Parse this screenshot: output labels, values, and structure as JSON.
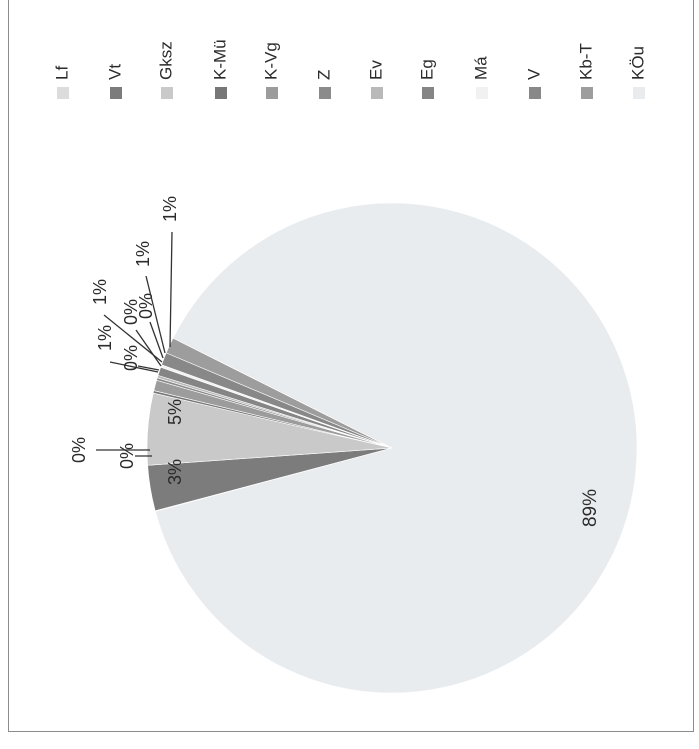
{
  "chart_data": {
    "type": "pie",
    "orientation": "rotated 90 degrees counter-clockwise (scanned page)",
    "title": "",
    "legend_position": "right",
    "categories": [
      "Lf",
      "Vt",
      "Gksz",
      "K-Mü",
      "K-Vg",
      "Z",
      "Ev",
      "Eg",
      "Má",
      "V",
      "Kb-T",
      "KÖu"
    ],
    "values": [
      0,
      3,
      5,
      0,
      1,
      0,
      0,
      1,
      0,
      1,
      1,
      89
    ],
    "data_labels": [
      "0%",
      "3%",
      "5%",
      "0%",
      "1%",
      "0%",
      "0%",
      "1%",
      "0%",
      "1%",
      "1%",
      "89%"
    ],
    "colors": [
      "#dcdcdc",
      "#7c7c7c",
      "#c9c9c9",
      "#777777",
      "#9c9c9c",
      "#8b8b8b",
      "#b9b9b9",
      "#858585",
      "#f1f1f1",
      "#888888",
      "#9d9d9d",
      "#e9ecee"
    ]
  }
}
